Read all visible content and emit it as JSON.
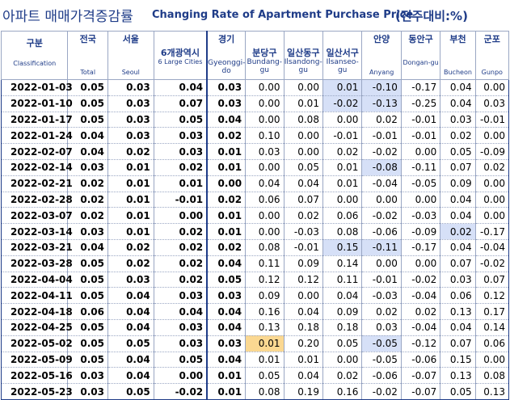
{
  "title": {
    "korean": "아파트 매매가격증감률",
    "english": "Changing Rate of Apartment Purchase Price",
    "unit": "(전주대비:%)"
  },
  "columns": [
    {
      "ko": "구분",
      "en": "Classification"
    },
    {
      "ko": "전국",
      "en": "Total"
    },
    {
      "ko": "서울",
      "en": "Seoul"
    },
    {
      "ko": "6개광역시",
      "en": "6 Large Cities"
    },
    {
      "ko": "경기",
      "en": "Gyeonggi-do"
    },
    {
      "ko": "분당구",
      "en": "Bundang-gu"
    },
    {
      "ko": "일산동구",
      "en": "Ilsandong-gu"
    },
    {
      "ko": "일산서구",
      "en": "Ilsanseo-gu"
    },
    {
      "ko": "안양",
      "en": "Anyang"
    },
    {
      "ko": "동안구",
      "en": "Dongan-gu"
    },
    {
      "ko": "부천",
      "en": "Bucheon"
    },
    {
      "ko": "군포",
      "en": "Gunpo"
    }
  ],
  "rows": [
    {
      "date": "2022-01-03",
      "values": [
        "0.05",
        "0.03",
        "0.04",
        "0.03",
        "0.00",
        "0.00",
        "0.01",
        "-0.10",
        "-0.17",
        "0.04",
        "0.00"
      ]
    },
    {
      "date": "2022-01-10",
      "values": [
        "0.05",
        "0.03",
        "0.07",
        "0.03",
        "0.00",
        "0.01",
        "-0.02",
        "-0.13",
        "-0.25",
        "0.04",
        "0.03"
      ]
    },
    {
      "date": "2022-01-17",
      "values": [
        "0.05",
        "0.03",
        "0.05",
        "0.04",
        "0.00",
        "0.08",
        "0.00",
        "0.02",
        "-0.01",
        "0.03",
        "-0.01"
      ]
    },
    {
      "date": "2022-01-24",
      "values": [
        "0.04",
        "0.03",
        "0.03",
        "0.02",
        "0.10",
        "0.00",
        "-0.01",
        "-0.01",
        "-0.01",
        "0.02",
        "0.00"
      ]
    },
    {
      "date": "2022-02-07",
      "values": [
        "0.04",
        "0.02",
        "0.03",
        "0.01",
        "0.03",
        "0.00",
        "0.02",
        "-0.02",
        "0.00",
        "0.05",
        "-0.09"
      ]
    },
    {
      "date": "2022-02-14",
      "values": [
        "0.03",
        "0.01",
        "0.02",
        "0.01",
        "0.00",
        "0.05",
        "0.01",
        "-0.08",
        "-0.11",
        "0.07",
        "0.02"
      ]
    },
    {
      "date": "2022-02-21",
      "values": [
        "0.02",
        "0.01",
        "0.01",
        "0.00",
        "0.04",
        "0.04",
        "0.01",
        "-0.04",
        "-0.05",
        "0.09",
        "0.00"
      ]
    },
    {
      "date": "2022-02-28",
      "values": [
        "0.02",
        "0.01",
        "-0.01",
        "0.02",
        "0.06",
        "0.07",
        "0.00",
        "0.00",
        "0.00",
        "0.04",
        "0.00"
      ]
    },
    {
      "date": "2022-03-07",
      "values": [
        "0.02",
        "0.01",
        "0.00",
        "0.01",
        "0.00",
        "0.02",
        "0.06",
        "-0.02",
        "-0.03",
        "0.04",
        "0.00"
      ]
    },
    {
      "date": "2022-03-14",
      "values": [
        "0.03",
        "0.01",
        "0.02",
        "0.01",
        "0.00",
        "-0.03",
        "0.08",
        "-0.06",
        "-0.09",
        "0.02",
        "-0.17"
      ]
    },
    {
      "date": "2022-03-21",
      "values": [
        "0.04",
        "0.02",
        "0.02",
        "0.02",
        "0.08",
        "-0.01",
        "0.15",
        "-0.11",
        "-0.17",
        "0.04",
        "-0.04"
      ]
    },
    {
      "date": "2022-03-28",
      "values": [
        "0.05",
        "0.02",
        "0.02",
        "0.04",
        "0.11",
        "0.09",
        "0.14",
        "0.00",
        "0.00",
        "0.07",
        "-0.02"
      ]
    },
    {
      "date": "2022-04-04",
      "values": [
        "0.05",
        "0.03",
        "0.02",
        "0.05",
        "0.12",
        "0.12",
        "0.11",
        "-0.01",
        "-0.02",
        "0.03",
        "0.07"
      ]
    },
    {
      "date": "2022-04-11",
      "values": [
        "0.05",
        "0.04",
        "0.03",
        "0.03",
        "0.09",
        "0.00",
        "0.04",
        "-0.03",
        "-0.04",
        "0.06",
        "0.12"
      ]
    },
    {
      "date": "2022-04-18",
      "values": [
        "0.06",
        "0.04",
        "0.04",
        "0.04",
        "0.16",
        "0.04",
        "0.09",
        "0.02",
        "0.02",
        "0.13",
        "0.17"
      ]
    },
    {
      "date": "2022-04-25",
      "values": [
        "0.05",
        "0.04",
        "0.03",
        "0.04",
        "0.13",
        "0.18",
        "0.18",
        "0.03",
        "-0.04",
        "0.04",
        "0.14"
      ]
    },
    {
      "date": "2022-05-02",
      "values": [
        "0.05",
        "0.05",
        "0.03",
        "0.03",
        "0.01",
        "0.20",
        "0.05",
        "-0.05",
        "-0.12",
        "0.07",
        "0.06"
      ]
    },
    {
      "date": "2022-05-09",
      "values": [
        "0.05",
        "0.04",
        "0.05",
        "0.04",
        "0.01",
        "0.01",
        "0.00",
        "-0.05",
        "-0.06",
        "0.15",
        "0.00"
      ]
    },
    {
      "date": "2022-05-16",
      "values": [
        "0.03",
        "0.04",
        "0.00",
        "0.01",
        "0.05",
        "0.04",
        "0.02",
        "-0.06",
        "-0.07",
        "0.13",
        "0.08"
      ]
    },
    {
      "date": "2022-05-23",
      "values": [
        "0.03",
        "0.05",
        "-0.02",
        "0.01",
        "0.08",
        "0.19",
        "0.16",
        "-0.02",
        "-0.07",
        "0.05",
        "0.13"
      ]
    }
  ],
  "highlights": [
    {
      "row": 0,
      "col": 7,
      "color": "#d6e0f7"
    },
    {
      "row": 0,
      "col": 8,
      "color": "#d6e0f7"
    },
    {
      "row": 1,
      "col": 7,
      "color": "#d6e0f7"
    },
    {
      "row": 1,
      "col": 8,
      "color": "#d6e0f7"
    },
    {
      "row": 5,
      "col": 8,
      "color": "#d6e0f7"
    },
    {
      "row": 9,
      "col": 10,
      "color": "#d6e0f7"
    },
    {
      "row": 10,
      "col": 7,
      "color": "#d6e0f7"
    },
    {
      "row": 10,
      "col": 8,
      "color": "#d6e0f7"
    },
    {
      "row": 16,
      "col": 5,
      "color": "#fbd891"
    },
    {
      "row": 16,
      "col": 8,
      "color": "#d6e0f7"
    }
  ],
  "colors": {
    "title": "#1f3c88",
    "grid": "#9aa7c4",
    "highlight_blue": "#d6e0f7",
    "highlight_yellow": "#fbd891"
  }
}
